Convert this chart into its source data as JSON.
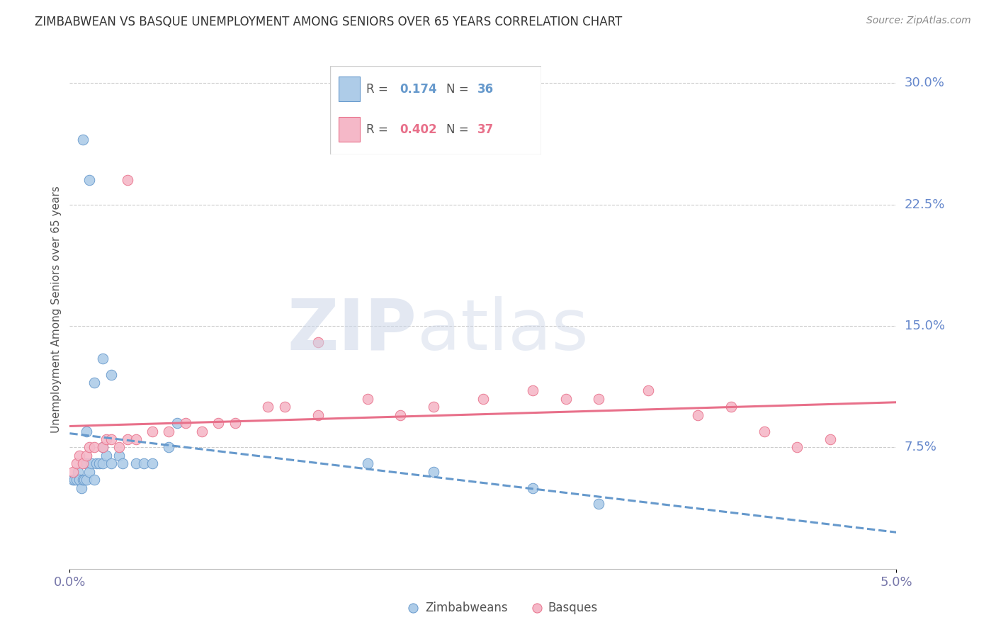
{
  "title": "ZIMBABWEAN VS BASQUE UNEMPLOYMENT AMONG SENIORS OVER 65 YEARS CORRELATION CHART",
  "source": "Source: ZipAtlas.com",
  "ylabel": "Unemployment Among Seniors over 65 years",
  "legend_zimbabwe": {
    "R": "0.174",
    "N": "36"
  },
  "legend_basque": {
    "R": "0.402",
    "N": "37"
  },
  "zimbabwe_color": "#aecce8",
  "basque_color": "#f5b8c8",
  "zimbabwe_line_color": "#6699cc",
  "basque_line_color": "#e8708a",
  "right_ytick_labels": [
    "30.0%",
    "22.5%",
    "15.0%",
    "7.5%"
  ],
  "right_ytick_values": [
    0.3,
    0.225,
    0.15,
    0.075
  ],
  "xlim": [
    0.0,
    0.05
  ],
  "ylim": [
    0.0,
    0.32
  ],
  "zw_x": [
    0.0002,
    0.0003,
    0.0004,
    0.0005,
    0.0006,
    0.0007,
    0.0008,
    0.0009,
    0.001,
    0.001,
    0.0012,
    0.0013,
    0.0015,
    0.0016,
    0.0018,
    0.002,
    0.002,
    0.0022,
    0.0025,
    0.003,
    0.0032,
    0.004,
    0.0045,
    0.005,
    0.006,
    0.0065,
    0.0015,
    0.002,
    0.0025,
    0.001,
    0.0008,
    0.0012,
    0.018,
    0.022,
    0.028,
    0.032
  ],
  "zw_y": [
    0.055,
    0.055,
    0.055,
    0.06,
    0.055,
    0.05,
    0.055,
    0.055,
    0.065,
    0.055,
    0.06,
    0.065,
    0.055,
    0.065,
    0.065,
    0.075,
    0.065,
    0.07,
    0.065,
    0.07,
    0.065,
    0.065,
    0.065,
    0.065,
    0.075,
    0.09,
    0.115,
    0.13,
    0.12,
    0.085,
    0.265,
    0.24,
    0.065,
    0.06,
    0.05,
    0.04
  ],
  "bq_x": [
    0.0002,
    0.0004,
    0.0006,
    0.0008,
    0.001,
    0.0012,
    0.0015,
    0.002,
    0.0022,
    0.0025,
    0.003,
    0.0035,
    0.004,
    0.005,
    0.006,
    0.007,
    0.008,
    0.009,
    0.01,
    0.012,
    0.013,
    0.015,
    0.018,
    0.02,
    0.022,
    0.025,
    0.028,
    0.03,
    0.032,
    0.035,
    0.038,
    0.04,
    0.042,
    0.044,
    0.046,
    0.0035,
    0.015
  ],
  "bq_y": [
    0.06,
    0.065,
    0.07,
    0.065,
    0.07,
    0.075,
    0.075,
    0.075,
    0.08,
    0.08,
    0.075,
    0.08,
    0.08,
    0.085,
    0.085,
    0.09,
    0.085,
    0.09,
    0.09,
    0.1,
    0.1,
    0.095,
    0.105,
    0.095,
    0.1,
    0.105,
    0.11,
    0.105,
    0.105,
    0.11,
    0.095,
    0.1,
    0.085,
    0.075,
    0.08,
    0.24,
    0.14
  ]
}
